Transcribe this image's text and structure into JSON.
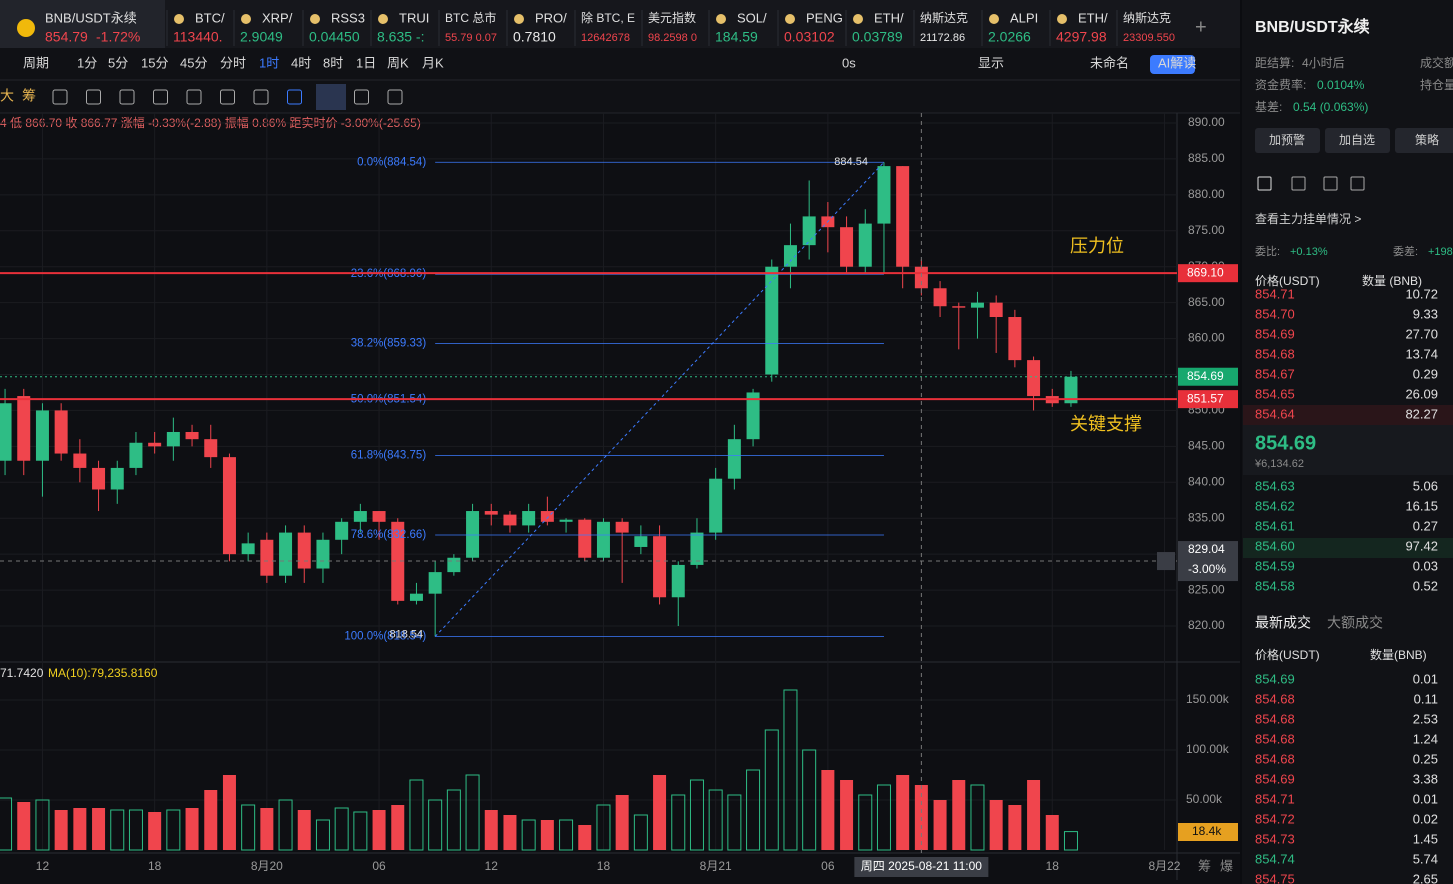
{
  "tabs": [
    {
      "name": "BNB/USDT永续",
      "price": "854.79",
      "change": "-1.72%",
      "color": "#f0454d"
    },
    {
      "name": "BTC/",
      "price": "113440.",
      "color": "#f0454d"
    },
    {
      "name": "XRP/",
      "price": "2.9049",
      "color": "#2ebd85"
    },
    {
      "name": "RSS3",
      "price": "0.04450",
      "color": "#2ebd85"
    },
    {
      "name": "TRUI",
      "price": "8.635 -:",
      "color": "#2ebd85"
    },
    {
      "name": "BTC 总市",
      "price": "55.79  0.07",
      "color": "#f0454d"
    },
    {
      "name": "PRO/",
      "price": "0.7810",
      "color": "#e8e8e8"
    },
    {
      "name": "除 BTC, E",
      "price": "12642678",
      "color": "#f0454d"
    },
    {
      "name": "美元指数",
      "price": "98.2598  0",
      "color": "#f0454d"
    },
    {
      "name": "SOL/",
      "price": "184.59",
      "color": "#2ebd85"
    },
    {
      "name": "PENG",
      "price": "0.03102",
      "color": "#f0454d"
    },
    {
      "name": "ETH/",
      "price": "0.03789",
      "color": "#2ebd85"
    },
    {
      "name": "纳斯达克",
      "price": "21172.86",
      "color": "#e8e8e8"
    },
    {
      "name": "ALPI",
      "price": "2.0266",
      "color": "#2ebd85"
    },
    {
      "name": "ETH/",
      "price": "4297.98",
      "color": "#f0454d"
    },
    {
      "name": "纳斯达克",
      "price": "23309.550",
      "color": "#f0454d"
    }
  ],
  "periods": [
    "周期",
    "1分",
    "5分",
    "15分",
    "45分",
    "分时",
    "1时",
    "4时",
    "8时",
    "1日",
    "周K",
    "月K"
  ],
  "toolbar_right": [
    "0s",
    "显示",
    "未命名",
    "AI解读"
  ],
  "tools": [
    "大",
    "筹"
  ],
  "info_line": "4 低 866.70 收 866.77 涨幅 -0.33%(-2.88) 振幅 0.86% 距实时价 -3.00%(-25.65)",
  "chart_data": {
    "type": "candlestick",
    "open": [
      843,
      852,
      843,
      850,
      844,
      842,
      839,
      842,
      845.5,
      845,
      847,
      846,
      843.5,
      830,
      832,
      827,
      833,
      828,
      832,
      834.5,
      836,
      834.5,
      823.5,
      824.5,
      827.5,
      829.5,
      836,
      835.5,
      834,
      836,
      834.5,
      834.8,
      829.5,
      834.5,
      831,
      832.5,
      824,
      828.5,
      833,
      840.5,
      846,
      855,
      870,
      873,
      877,
      875.5,
      870,
      876,
      884,
      870,
      867,
      864.5,
      864.3,
      865,
      863,
      857,
      852,
      851
    ],
    "high": [
      853,
      853,
      851,
      851,
      846,
      843,
      843,
      847,
      847,
      849,
      848,
      848,
      844,
      833,
      833,
      834,
      834,
      833,
      835,
      837,
      836,
      835,
      826,
      829,
      830,
      837,
      837,
      836,
      837,
      838,
      835,
      835,
      835,
      835,
      834,
      834,
      829,
      835,
      842,
      848,
      853,
      871,
      876,
      882,
      879,
      877,
      878,
      884.54,
      884,
      871,
      868,
      865,
      866.5,
      866,
      864,
      857.5,
      853,
      855.5
    ],
    "low": [
      841,
      841,
      838,
      843,
      840,
      836,
      837,
      841,
      844,
      843,
      845,
      842,
      829,
      829,
      826,
      826,
      826,
      826,
      830,
      833,
      832,
      823,
      823,
      818.54,
      827,
      829,
      834,
      833,
      833,
      834,
      833,
      829,
      829,
      826,
      830,
      823,
      820,
      828,
      832,
      839,
      845,
      854,
      867,
      871,
      872,
      869,
      869,
      869,
      867,
      866,
      863,
      858.5,
      860,
      858,
      856,
      850,
      850.5,
      850.5
    ],
    "close": [
      851,
      843,
      850,
      844,
      842,
      839,
      842,
      845.5,
      845,
      847,
      846,
      843.5,
      830,
      831.5,
      827,
      833,
      828,
      832,
      834.5,
      836,
      834.5,
      823.5,
      824.5,
      827.5,
      829.5,
      836,
      835.5,
      834,
      836,
      834.5,
      834.8,
      829.5,
      834.5,
      833,
      832.5,
      824,
      828.5,
      833,
      840.5,
      846,
      852.5,
      870,
      873,
      877,
      875.5,
      870,
      876,
      884,
      870,
      867,
      864.5,
      864.3,
      865,
      863,
      857,
      852,
      851,
      854.69
    ],
    "volume": [
      52000,
      48000,
      50000,
      40000,
      42000,
      42000,
      40000,
      40000,
      38000,
      40000,
      42000,
      60000,
      75000,
      45000,
      42000,
      50000,
      40000,
      30000,
      42000,
      38000,
      40000,
      45000,
      70000,
      50000,
      60000,
      75000,
      40000,
      35000,
      30000,
      30000,
      30000,
      25000,
      45000,
      55000,
      35000,
      75000,
      55000,
      70000,
      60000,
      55000,
      80000,
      120000,
      160000,
      100000,
      80000,
      70000,
      55000,
      65000,
      75000,
      65000,
      50000,
      70000,
      65000,
      50000,
      45000,
      70000,
      35000,
      18400
    ],
    "volume_label": "18.4k",
    "up_color": "#2ebd85",
    "down_color": "#f0454d",
    "xlim": [
      -0.27,
      62.67
    ],
    "xticks": [
      {
        "value": 2,
        "label": "12"
      },
      {
        "value": 8,
        "label": "18"
      },
      {
        "value": 14,
        "label": "8月20"
      },
      {
        "value": 20,
        "label": "06"
      },
      {
        "value": 26,
        "label": "12"
      },
      {
        "value": 32,
        "label": "18"
      },
      {
        "value": 38,
        "label": "8月21"
      },
      {
        "value": 44,
        "label": "06"
      },
      {
        "value": 56,
        "label": "18"
      },
      {
        "value": 62,
        "label": "8月22"
      }
    ],
    "ylim": [
      815.27,
      891.39
    ],
    "yticks": [
      {
        "value": 820,
        "label": "820.00"
      },
      {
        "value": 825,
        "label": "825.00"
      },
      {
        "value": 830,
        "label": "830.00"
      },
      {
        "value": 835,
        "label": "835.00"
      },
      {
        "value": 840,
        "label": "840.00"
      },
      {
        "value": 845,
        "label": "845.00"
      },
      {
        "value": 850,
        "label": "850.00"
      },
      {
        "value": 855,
        "label": "855.00"
      },
      {
        "value": 860,
        "label": "860.00"
      },
      {
        "value": 865,
        "label": "865.00"
      },
      {
        "value": 870,
        "label": "870.00"
      },
      {
        "value": 875,
        "label": "875.00"
      },
      {
        "value": 880,
        "label": "880.00"
      },
      {
        "value": 885,
        "label": "885.00"
      },
      {
        "value": 890,
        "label": "890.00"
      }
    ],
    "vlim": [
      0,
      185000
    ],
    "vticks": [
      {
        "value": 50000,
        "label": "50.00k"
      },
      {
        "value": 100000,
        "label": "100.00k"
      },
      {
        "value": 150000,
        "label": "150.00k"
      }
    ],
    "ma_labels": [
      "71.7420",
      "MA(10):79,235.8160"
    ],
    "grid": true,
    "fib": {
      "from": 23,
      "to": 47,
      "low": 818.54,
      "high": 884.54,
      "levels": [
        {
          "value": 884.54,
          "label": "0.0%(884.54)"
        },
        {
          "value": 868.96,
          "label": "23.6%(868.96)"
        },
        {
          "value": 859.33,
          "label": "38.2%(859.33)"
        },
        {
          "value": 851.54,
          "label": "50.0%(851.54)"
        },
        {
          "value": 843.75,
          "label": "61.8%(843.75)"
        },
        {
          "value": 832.66,
          "label": "78.6%(832.66)"
        },
        {
          "value": 818.54,
          "label": "100.0%(818.54)"
        }
      ]
    },
    "hlines": [
      {
        "value": 869.1,
        "label": "869.10",
        "note": "压力位"
      },
      {
        "value": 851.57,
        "label": "851.57",
        "note": "关键支撑"
      }
    ],
    "last_price": 854.69,
    "crosshair": {
      "x": 49,
      "y": 829.04,
      "pct": "-3.00%",
      "time": "周四 2025-08-21 11:00"
    },
    "corner": [
      "筹",
      "爆"
    ]
  },
  "panel": {
    "title": "BNB/USDT永续",
    "settle_label": "距结算:",
    "settle": "4小时后",
    "turnover_label": "成交额",
    "funding_label": "资金费率:",
    "funding": "0.0104%",
    "oi_label": "持仓量",
    "basis_label": "基差:",
    "basis": "0.54 (0.063%)",
    "buttons": [
      "加预警",
      "加自选",
      "策略"
    ],
    "depth_link": "查看主力挂单情况 >",
    "ratio_label": "委比:",
    "ratio": "+0.13%",
    "diff_label": "委差:",
    "diff": "+198",
    "book_header": [
      "价格(USDT)",
      "数量 (BNB)"
    ],
    "asks": [
      [
        "854.71",
        "10.72"
      ],
      [
        "854.70",
        "9.33"
      ],
      [
        "854.69",
        "27.70"
      ],
      [
        "854.68",
        "13.74"
      ],
      [
        "854.67",
        "0.29"
      ],
      [
        "854.65",
        "26.09"
      ],
      [
        "854.64",
        "82.27"
      ]
    ],
    "mid": "854.69",
    "mid_cny": "¥6,134.62",
    "bids": [
      [
        "854.63",
        "5.06"
      ],
      [
        "854.62",
        "16.15"
      ],
      [
        "854.61",
        "0.27"
      ],
      [
        "854.60",
        "97.42"
      ],
      [
        "854.59",
        "0.03"
      ],
      [
        "854.58",
        "0.52"
      ]
    ],
    "trade_tabs": [
      "最新成交",
      "大额成交"
    ],
    "trade_header": [
      "价格(USDT)",
      "数量(BNB)"
    ],
    "trades": [
      [
        "854.69",
        "0.01",
        "#2ebd85"
      ],
      [
        "854.68",
        "0.11",
        "#f0454d"
      ],
      [
        "854.68",
        "2.53",
        "#f0454d"
      ],
      [
        "854.68",
        "1.24",
        "#f0454d"
      ],
      [
        "854.68",
        "0.25",
        "#f0454d"
      ],
      [
        "854.69",
        "3.38",
        "#f0454d"
      ],
      [
        "854.71",
        "0.01",
        "#f0454d"
      ],
      [
        "854.72",
        "0.02",
        "#f0454d"
      ],
      [
        "854.73",
        "1.45",
        "#f0454d"
      ],
      [
        "854.74",
        "5.74",
        "#2ebd85"
      ],
      [
        "854.75",
        "2.65",
        "#f0454d"
      ]
    ]
  }
}
